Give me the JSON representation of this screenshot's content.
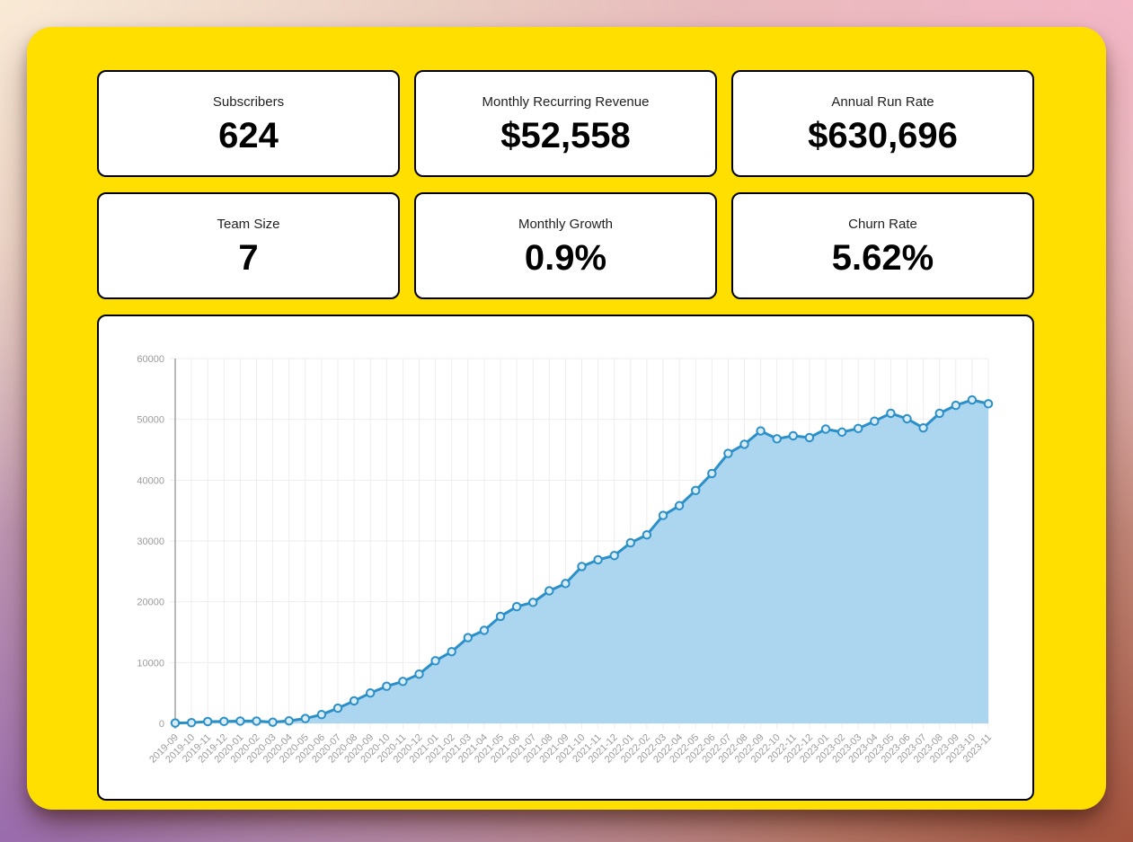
{
  "stats": [
    {
      "id": "subscribers",
      "label": "Subscribers",
      "value": "624"
    },
    {
      "id": "mrr",
      "label": "Monthly Recurring Revenue",
      "value": "$52,558"
    },
    {
      "id": "arr",
      "label": "Annual Run Rate",
      "value": "$630,696"
    },
    {
      "id": "team-size",
      "label": "Team Size",
      "value": "7"
    },
    {
      "id": "monthly-growth",
      "label": "Monthly Growth",
      "value": "0.9%"
    },
    {
      "id": "churn-rate",
      "label": "Churn Rate",
      "value": "5.62%"
    }
  ],
  "theme": {
    "board_bg": "#ffdf00",
    "panel_bg": "#ffffff",
    "panel_border": "#000000",
    "bg_corner_top_left": "#f9ead6",
    "bg_corner_top_right": "#f3b7c6",
    "bg_corner_bottom_left": "#9a6cae",
    "bg_corner_bottom_right": "#a4543e"
  },
  "chart_data": {
    "type": "area",
    "title": "",
    "xlabel": "",
    "ylabel": "",
    "ylim": [
      0,
      60000
    ],
    "yticks": [
      0,
      10000,
      20000,
      30000,
      40000,
      50000,
      60000
    ],
    "grid": true,
    "legend": false,
    "x": [
      "2019-09",
      "2019-10",
      "2019-11",
      "2019-12",
      "2020-01",
      "2020-02",
      "2020-03",
      "2020-04",
      "2020-05",
      "2020-06",
      "2020-07",
      "2020-08",
      "2020-09",
      "2020-10",
      "2020-11",
      "2020-12",
      "2021-01",
      "2021-02",
      "2021-03",
      "2021-04",
      "2021-05",
      "2021-06",
      "2021-07",
      "2021-08",
      "2021-09",
      "2021-10",
      "2021-11",
      "2021-12",
      "2022-01",
      "2022-02",
      "2022-03",
      "2022-04",
      "2022-05",
      "2022-06",
      "2022-07",
      "2022-08",
      "2022-09",
      "2022-10",
      "2022-11",
      "2022-12",
      "2023-01",
      "2023-02",
      "2023-03",
      "2023-04",
      "2023-05",
      "2023-06",
      "2023-07",
      "2023-08",
      "2023-09",
      "2023-10",
      "2023-11"
    ],
    "series": [
      {
        "name": "Monthly Recurring Revenue",
        "values": [
          60,
          120,
          300,
          320,
          380,
          380,
          200,
          420,
          800,
          1450,
          2500,
          3700,
          5000,
          6100,
          6900,
          8100,
          10300,
          11800,
          14100,
          15300,
          17600,
          19200,
          19900,
          21800,
          23000,
          25800,
          26900,
          27600,
          29700,
          31000,
          34200,
          35800,
          38300,
          41100,
          44400,
          45900,
          48100,
          46800,
          47300,
          47000,
          48400,
          47900,
          48500,
          49700,
          51000,
          50100,
          48600,
          51000,
          52300,
          53200,
          52558
        ]
      }
    ],
    "colors": {
      "line": "#2b90c8",
      "fill": "#acd5ef",
      "marker_fill": "#d9ecf8",
      "grid": "#ededed",
      "axis": "#b8b8b8",
      "tick_label": "#9b9b9b"
    }
  }
}
